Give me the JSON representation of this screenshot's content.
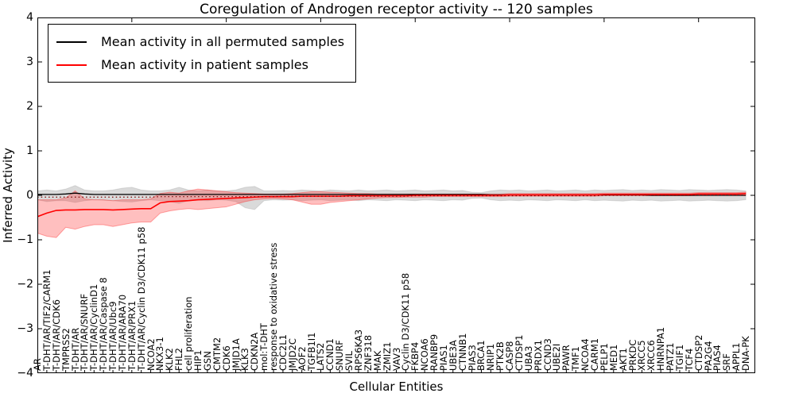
{
  "title": "Coregulation of Androgen receptor activity -- 120 samples",
  "legend": {
    "items": [
      {
        "label": "Mean activity in all permuted samples",
        "color": "#000000"
      },
      {
        "label": "Mean activity in patient samples",
        "color": "#ff0000"
      }
    ]
  },
  "axes": {
    "xlabel": "Cellular Entities",
    "ylabel": "Inferred Activity",
    "ylim": [
      -4,
      4
    ],
    "yticks": [
      {
        "value": 4,
        "label": "4"
      },
      {
        "value": 3,
        "label": "3"
      },
      {
        "value": 2,
        "label": "2"
      },
      {
        "value": 1,
        "label": "1"
      },
      {
        "value": 0,
        "label": "0"
      },
      {
        "value": -1,
        "label": "−1"
      },
      {
        "value": -2,
        "label": "−2"
      },
      {
        "value": -3,
        "label": "−3"
      },
      {
        "value": -4,
        "label": "−4"
      }
    ]
  },
  "chart_data": {
    "type": "line",
    "title": "Coregulation of Androgen receptor activity -- 120 samples",
    "xlabel": "Cellular Entities",
    "ylabel": "Inferred Activity",
    "ylim": [
      -4,
      4
    ],
    "grid": false,
    "legend_position": "upper left",
    "categories": [
      "AR",
      "T-DHT/AR/TIF2/CARM1",
      "T-DHT/AR/CDK6",
      "TMPRSS2",
      "T-DHT/AR",
      "T-DHT/AR/SNURF",
      "T-DHT/AR/CyclinD1",
      "T-DHT/AR/Caspase 8",
      "T-DHT/AR/Ubc9",
      "T-DHT/AR/ARA70",
      "T-DHT/AR/PRX1",
      "T-DHT/AR/Cyclin D3/CDK11 p58",
      "NCOA2",
      "NKX3-1",
      "KLK2",
      "FHL2",
      "cell proliferation",
      "HIP1",
      "GSN",
      "CMTM2",
      "CDK6",
      "JMJD1A",
      "KLK3",
      "CDKN2A",
      "mol:T-DHT",
      "response to oxidative stress",
      "CDC2L1",
      "JMJD2C",
      "AOF2",
      "TGFB1I1",
      "LATS2",
      "CCND1",
      "SNURF",
      "SVIL",
      "RPS6KA3",
      "ZNF318",
      "MAK",
      "ZMIZ1",
      "VAV3",
      "Cyclin D3/CDK11 p58",
      "FKBP4",
      "NCOA6",
      "RANBP9",
      "PIAS1",
      "UBE3A",
      "CTNNB1",
      "PIAS3",
      "BRCA1",
      "NRIP1",
      "PTK2B",
      "CASP8",
      "CTDSP1",
      "UBA3",
      "PRDX1",
      "CCND3",
      "UBE2I",
      "PAWR",
      "TMF1",
      "NCOA4",
      "CARM1",
      "PELP1",
      "MED1",
      "AKT1",
      "PRKDC",
      "XRCC5",
      "XRCC6",
      "HNRNPA1",
      "PATZ1",
      "TGIF1",
      "TCF4",
      "CTDSP2",
      "PA2G4",
      "PIAS4",
      "SRF",
      "APPL1",
      "DNA-PK"
    ],
    "series": [
      {
        "name": "Mean activity in all permuted samples",
        "color": "#000000",
        "style": "solid",
        "width": 1.3,
        "values": [
          0.02,
          0.02,
          0.02,
          0.03,
          0.05,
          0.03,
          0.02,
          0.02,
          0.02,
          0.02,
          0.02,
          0.02,
          0.02,
          0.02,
          0.02,
          0.02,
          0.02,
          0.02,
          0.02,
          0.02,
          0.02,
          0.02,
          0.02,
          0.02,
          0.02,
          0.02,
          0.02,
          0.02,
          0.02,
          0.02,
          0.02,
          0.02,
          0.02,
          0.02,
          0.02,
          0.02,
          0.02,
          0.02,
          0.02,
          0.02,
          0.02,
          0.02,
          0.02,
          0.02,
          0.02,
          0.02,
          0.02,
          0.02,
          0.01,
          0.01,
          0.01,
          0.01,
          0.01,
          0.01,
          0.01,
          0.01,
          0.01,
          0.01,
          0.01,
          0.01,
          0.01,
          0.01,
          0.01,
          0.01,
          0.01,
          0.0,
          0.0,
          0.0,
          0.0,
          0.0,
          0.0,
          0.0,
          0.0,
          0.0,
          0.0,
          0.0
        ]
      },
      {
        "name": "Mean activity in patient samples",
        "color": "#ff0000",
        "style": "solid",
        "width": 1.6,
        "values": [
          -0.48,
          -0.4,
          -0.34,
          -0.33,
          -0.33,
          -0.32,
          -0.32,
          -0.32,
          -0.33,
          -0.32,
          -0.31,
          -0.3,
          -0.3,
          -0.17,
          -0.14,
          -0.13,
          -0.12,
          -0.1,
          -0.09,
          -0.08,
          -0.07,
          -0.06,
          -0.05,
          -0.04,
          -0.03,
          -0.03,
          -0.03,
          -0.03,
          -0.02,
          -0.02,
          -0.02,
          -0.02,
          -0.02,
          -0.01,
          -0.01,
          -0.01,
          -0.01,
          -0.01,
          -0.01,
          -0.01,
          0.0,
          0.0,
          0.0,
          0.0,
          0.0,
          0.0,
          0.0,
          0.0,
          0.0,
          0.0,
          0.01,
          0.01,
          0.01,
          0.01,
          0.01,
          0.01,
          0.01,
          0.01,
          0.01,
          0.01,
          0.02,
          0.02,
          0.02,
          0.02,
          0.02,
          0.02,
          0.02,
          0.02,
          0.02,
          0.02,
          0.03,
          0.03,
          0.03,
          0.03,
          0.03,
          0.04
        ]
      },
      {
        "name": "dotted overlay line",
        "color": "#7a0000",
        "style": "dotted",
        "width": 1.2,
        "values": [
          -0.04,
          -0.04,
          -0.04,
          -0.04,
          -0.04,
          -0.04,
          -0.04,
          -0.04,
          -0.04,
          -0.04,
          -0.04,
          -0.04,
          -0.04,
          -0.03,
          -0.03,
          -0.03,
          -0.03,
          -0.03,
          -0.03,
          -0.03,
          -0.03,
          -0.03,
          -0.03,
          -0.03,
          -0.03,
          -0.03,
          -0.02,
          -0.02,
          -0.02,
          -0.02,
          -0.02,
          -0.02,
          -0.02,
          -0.02,
          -0.02,
          -0.02,
          -0.02,
          -0.02,
          -0.02,
          -0.02,
          -0.01,
          -0.01,
          -0.01,
          -0.01,
          -0.01,
          -0.01,
          -0.01,
          -0.01,
          -0.01,
          -0.01,
          -0.01,
          -0.01,
          -0.01,
          -0.01,
          -0.01,
          -0.01,
          -0.01,
          -0.01,
          -0.01,
          -0.01,
          0.0,
          0.0,
          0.0,
          0.0,
          0.0,
          0.0,
          0.0,
          0.0,
          0.0,
          0.0,
          0.0,
          0.0,
          0.0,
          0.0,
          0.0,
          0.0
        ]
      }
    ],
    "bands": [
      {
        "name": "permuted samples std band",
        "color": "#8c8c8c",
        "opacity": 0.32,
        "upper": [
          0.1,
          0.12,
          0.1,
          0.14,
          0.22,
          0.12,
          0.1,
          0.1,
          0.12,
          0.16,
          0.18,
          0.12,
          0.1,
          0.1,
          0.12,
          0.18,
          0.12,
          0.1,
          0.12,
          0.1,
          0.1,
          0.12,
          0.18,
          0.2,
          0.1,
          0.1,
          0.11,
          0.1,
          0.12,
          0.11,
          0.1,
          0.12,
          0.11,
          0.1,
          0.12,
          0.1,
          0.11,
          0.12,
          0.1,
          0.11,
          0.12,
          0.1,
          0.11,
          0.12,
          0.1,
          0.11,
          0.07,
          0.06,
          0.1,
          0.12,
          0.11,
          0.12,
          0.1,
          0.11,
          0.12,
          0.1,
          0.11,
          0.12,
          0.1,
          0.12,
          0.11,
          0.12,
          0.13,
          0.11,
          0.12,
          0.11,
          0.13,
          0.12,
          0.11,
          0.13,
          0.12,
          0.11,
          0.12,
          0.13,
          0.12,
          0.1
        ],
        "lower": [
          -0.1,
          -0.14,
          -0.12,
          -0.12,
          -0.16,
          -0.12,
          -0.1,
          -0.11,
          -0.12,
          -0.14,
          -0.15,
          -0.12,
          -0.1,
          -0.12,
          -0.14,
          -0.18,
          -0.12,
          -0.11,
          -0.12,
          -0.1,
          -0.11,
          -0.14,
          -0.28,
          -0.32,
          -0.12,
          -0.1,
          -0.11,
          -0.1,
          -0.12,
          -0.11,
          -0.1,
          -0.12,
          -0.11,
          -0.1,
          -0.12,
          -0.1,
          -0.11,
          -0.12,
          -0.1,
          -0.11,
          -0.12,
          -0.1,
          -0.11,
          -0.12,
          -0.1,
          -0.11,
          -0.07,
          -0.06,
          -0.1,
          -0.12,
          -0.11,
          -0.12,
          -0.1,
          -0.11,
          -0.12,
          -0.1,
          -0.11,
          -0.12,
          -0.1,
          -0.12,
          -0.11,
          -0.12,
          -0.13,
          -0.11,
          -0.12,
          -0.11,
          -0.13,
          -0.12,
          -0.11,
          -0.13,
          -0.12,
          -0.11,
          -0.12,
          -0.13,
          -0.12,
          -0.1
        ]
      },
      {
        "name": "patient samples std band",
        "color": "#ff2b2b",
        "opacity": 0.3,
        "upper": [
          -0.1,
          -0.1,
          -0.1,
          -0.06,
          0.1,
          -0.08,
          -0.1,
          -0.1,
          -0.12,
          -0.1,
          -0.1,
          -0.1,
          -0.08,
          0.04,
          0.07,
          0.05,
          0.1,
          0.14,
          0.12,
          0.1,
          0.08,
          0.06,
          0.05,
          0.04,
          0.03,
          0.03,
          0.03,
          0.04,
          0.06,
          0.08,
          0.08,
          0.07,
          0.06,
          0.05,
          0.04,
          0.04,
          0.03,
          0.03,
          0.03,
          0.03,
          0.03,
          0.03,
          0.03,
          0.03,
          0.03,
          0.03,
          0.03,
          0.03,
          0.03,
          0.03,
          0.04,
          0.04,
          0.04,
          0.04,
          0.04,
          0.04,
          0.04,
          0.04,
          0.04,
          0.04,
          0.05,
          0.05,
          0.05,
          0.05,
          0.05,
          0.05,
          0.05,
          0.05,
          0.05,
          0.05,
          0.06,
          0.06,
          0.06,
          0.06,
          0.06,
          0.07
        ],
        "lower": [
          -0.85,
          -0.92,
          -0.95,
          -0.72,
          -0.76,
          -0.7,
          -0.66,
          -0.66,
          -0.7,
          -0.66,
          -0.62,
          -0.6,
          -0.6,
          -0.4,
          -0.35,
          -0.32,
          -0.3,
          -0.32,
          -0.3,
          -0.28,
          -0.26,
          -0.2,
          -0.14,
          -0.1,
          -0.08,
          -0.07,
          -0.08,
          -0.1,
          -0.15,
          -0.2,
          -0.2,
          -0.16,
          -0.14,
          -0.12,
          -0.1,
          -0.08,
          -0.06,
          -0.05,
          -0.05,
          -0.04,
          -0.04,
          -0.04,
          -0.03,
          -0.03,
          -0.03,
          -0.03,
          -0.03,
          -0.03,
          -0.03,
          -0.03,
          -0.02,
          -0.02,
          -0.02,
          -0.02,
          -0.02,
          -0.02,
          -0.02,
          -0.02,
          -0.02,
          -0.02,
          -0.01,
          -0.01,
          -0.01,
          -0.01,
          -0.01,
          -0.01,
          -0.01,
          -0.01,
          -0.01,
          -0.01,
          0.0,
          0.0,
          0.0,
          0.0,
          0.0,
          0.01
        ]
      }
    ]
  }
}
